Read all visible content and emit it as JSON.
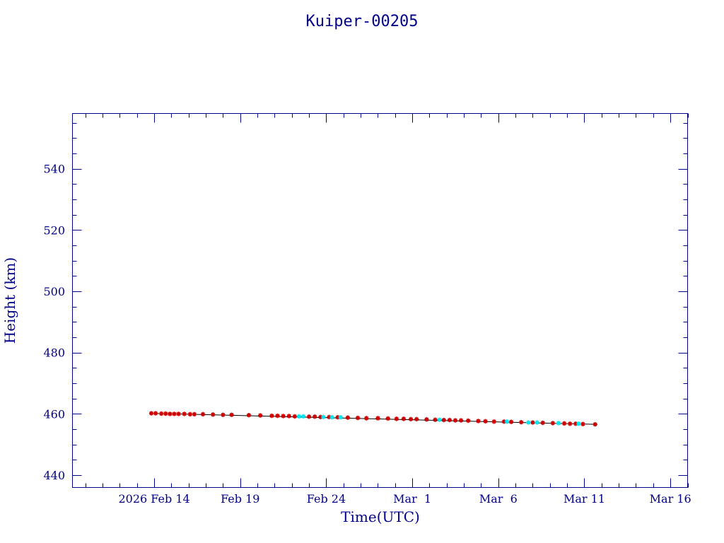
{
  "chart_data": {
    "type": "scatter",
    "title": "Kuiper-00205",
    "xlabel": "Time(UTC)",
    "ylabel": "Height (km)",
    "x_tick_labels": [
      "2026 Feb 14",
      "Feb 19",
      "Feb 24",
      "Mar  1",
      "Mar  6",
      "Mar 11",
      "Mar 16"
    ],
    "x_ticks": [
      "2026-02-14",
      "2026-02-19",
      "2026-02-24",
      "2026-03-01",
      "2026-03-06",
      "2026-03-11",
      "2026-03-16"
    ],
    "xlim": [
      "2026-02-09T06:00",
      "2026-03-17T00:00"
    ],
    "ylim": [
      436,
      558
    ],
    "y_ticks": [
      440,
      460,
      480,
      500,
      520,
      540
    ],
    "y_minor_step": 5,
    "grid": false,
    "colors": {
      "axis": "#00008b",
      "fit_line": "#000000",
      "series_red": "#cc0000",
      "series_cyan": "#00e5ee"
    },
    "trend": [
      {
        "t": "2026-02-13T20:00",
        "h": 460.2
      },
      {
        "t": "2026-03-11T15:00",
        "h": 456.6
      }
    ],
    "series": [
      {
        "color": "#cc0000",
        "marker": "star",
        "points": [
          {
            "t": "2026-02-13T20:00",
            "h": 460.2
          },
          {
            "t": "2026-02-14T02:00",
            "h": 460.2
          },
          {
            "t": "2026-02-14T10:00",
            "h": 460.1
          },
          {
            "t": "2026-02-14T16:00",
            "h": 460.1
          },
          {
            "t": "2026-02-14T22:00",
            "h": 460.0
          },
          {
            "t": "2026-02-15T04:00",
            "h": 460.0
          },
          {
            "t": "2026-02-15T10:00",
            "h": 460.0
          },
          {
            "t": "2026-02-15T18:00",
            "h": 460.0
          },
          {
            "t": "2026-02-16T02:00",
            "h": 459.9
          },
          {
            "t": "2026-02-16T08:00",
            "h": 459.9
          },
          {
            "t": "2026-02-16T20:00",
            "h": 459.9
          },
          {
            "t": "2026-02-17T10:00",
            "h": 459.8
          },
          {
            "t": "2026-02-18T00:00",
            "h": 459.7
          },
          {
            "t": "2026-02-18T12:00",
            "h": 459.7
          },
          {
            "t": "2026-02-19T12:00",
            "h": 459.6
          },
          {
            "t": "2026-02-20T04:00",
            "h": 459.5
          },
          {
            "t": "2026-02-20T20:00",
            "h": 459.4
          },
          {
            "t": "2026-02-21T04:00",
            "h": 459.4
          },
          {
            "t": "2026-02-21T12:00",
            "h": 459.3
          },
          {
            "t": "2026-02-21T20:00",
            "h": 459.3
          },
          {
            "t": "2026-02-22T04:00",
            "h": 459.2
          },
          {
            "t": "2026-02-23T00:00",
            "h": 459.1
          },
          {
            "t": "2026-02-23T08:00",
            "h": 459.1
          },
          {
            "t": "2026-02-23T16:00",
            "h": 459.0
          },
          {
            "t": "2026-02-24T04:00",
            "h": 459.0
          },
          {
            "t": "2026-02-24T16:00",
            "h": 458.9
          },
          {
            "t": "2026-02-25T06:00",
            "h": 458.8
          },
          {
            "t": "2026-02-25T20:00",
            "h": 458.7
          },
          {
            "t": "2026-02-26T08:00",
            "h": 458.6
          },
          {
            "t": "2026-02-27T00:00",
            "h": 458.6
          },
          {
            "t": "2026-02-27T14:00",
            "h": 458.5
          },
          {
            "t": "2026-02-28T02:00",
            "h": 458.4
          },
          {
            "t": "2026-02-28T12:00",
            "h": 458.4
          },
          {
            "t": "2026-02-28T22:00",
            "h": 458.3
          },
          {
            "t": "2026-03-01T06:00",
            "h": 458.3
          },
          {
            "t": "2026-03-01T20:00",
            "h": 458.2
          },
          {
            "t": "2026-03-02T08:00",
            "h": 458.1
          },
          {
            "t": "2026-03-02T20:00",
            "h": 458.0
          },
          {
            "t": "2026-03-03T04:00",
            "h": 458.0
          },
          {
            "t": "2026-03-03T12:00",
            "h": 457.9
          },
          {
            "t": "2026-03-03T20:00",
            "h": 457.9
          },
          {
            "t": "2026-03-04T06:00",
            "h": 457.8
          },
          {
            "t": "2026-03-04T20:00",
            "h": 457.7
          },
          {
            "t": "2026-03-05T06:00",
            "h": 457.6
          },
          {
            "t": "2026-03-05T18:00",
            "h": 457.5
          },
          {
            "t": "2026-03-06T08:00",
            "h": 457.5
          },
          {
            "t": "2026-03-06T18:00",
            "h": 457.4
          },
          {
            "t": "2026-03-07T08:00",
            "h": 457.3
          },
          {
            "t": "2026-03-08T00:00",
            "h": 457.2
          },
          {
            "t": "2026-03-08T14:00",
            "h": 457.1
          },
          {
            "t": "2026-03-09T04:00",
            "h": 457.0
          },
          {
            "t": "2026-03-09T20:00",
            "h": 456.9
          },
          {
            "t": "2026-03-10T04:00",
            "h": 456.8
          },
          {
            "t": "2026-03-10T12:00",
            "h": 456.8
          },
          {
            "t": "2026-03-10T22:00",
            "h": 456.7
          },
          {
            "t": "2026-03-11T15:00",
            "h": 456.6
          }
        ]
      },
      {
        "color": "#00e5ee",
        "marker": "star",
        "points": [
          {
            "t": "2026-02-22T10:00",
            "h": 459.2
          },
          {
            "t": "2026-02-22T16:00",
            "h": 459.2
          },
          {
            "t": "2026-02-23T20:00",
            "h": 459.0
          },
          {
            "t": "2026-02-24T08:00",
            "h": 458.9
          },
          {
            "t": "2026-02-24T20:00",
            "h": 458.9
          },
          {
            "t": "2026-03-02T14:00",
            "h": 458.1
          },
          {
            "t": "2026-03-06T12:00",
            "h": 457.5
          },
          {
            "t": "2026-03-07T18:00",
            "h": 457.2
          },
          {
            "t": "2026-03-08T06:00",
            "h": 457.2
          },
          {
            "t": "2026-03-09T12:00",
            "h": 457.0
          },
          {
            "t": "2026-03-10T16:00",
            "h": 456.8
          }
        ]
      }
    ]
  }
}
